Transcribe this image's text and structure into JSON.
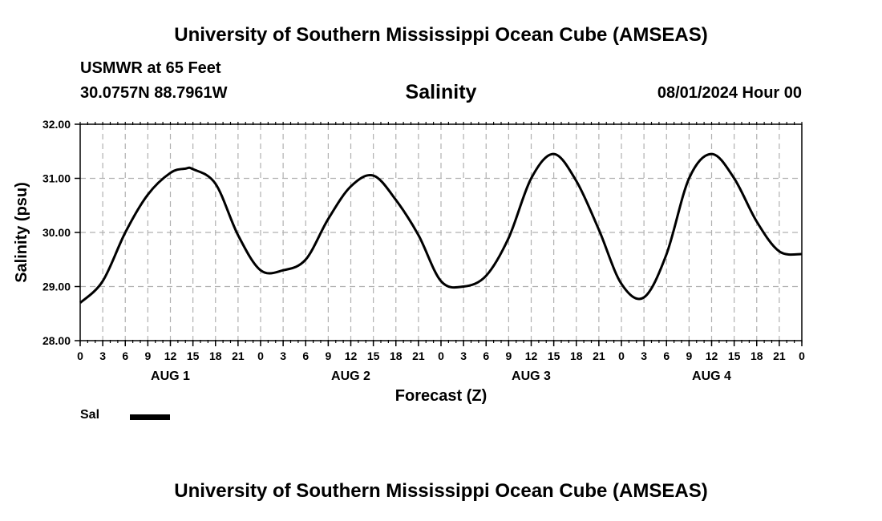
{
  "header": {
    "title": "University of Southern Mississippi Ocean Cube (AMSEAS)",
    "station": "USMWR at 65 Feet",
    "coords": "30.0757N  88.7961W",
    "variable": "Salinity",
    "datetime": "08/01/2024 Hour 00"
  },
  "footer": {
    "title": "University of Southern Mississippi Ocean Cube (AMSEAS)"
  },
  "legend": {
    "label": "Sal"
  },
  "chart_data": {
    "type": "line",
    "title": "Salinity",
    "xlabel": "Forecast (Z)",
    "ylabel": "Salinity (psu)",
    "xlim": [
      0,
      96
    ],
    "ylim": [
      28.0,
      32.0
    ],
    "yticks": [
      "28.00",
      "29.00",
      "30.00",
      "31.00",
      "32.00"
    ],
    "xtick_step_hours": 3,
    "xtick_labels": [
      "0",
      "3",
      "6",
      "9",
      "12",
      "15",
      "18",
      "21",
      "0",
      "3",
      "6",
      "9",
      "12",
      "15",
      "18",
      "21",
      "0",
      "3",
      "6",
      "9",
      "12",
      "15",
      "18",
      "21",
      "0",
      "3",
      "6",
      "9",
      "12",
      "15",
      "18",
      "21",
      "0"
    ],
    "day_labels": [
      {
        "label": "AUG 1",
        "hour": 12
      },
      {
        "label": "AUG 2",
        "hour": 36
      },
      {
        "label": "AUG 3",
        "hour": 60
      },
      {
        "label": "AUG 4",
        "hour": 84
      }
    ],
    "grid": true,
    "series": [
      {
        "name": "Sal",
        "x": [
          0,
          3,
          6,
          9,
          12,
          14,
          15,
          18,
          21,
          24,
          27,
          30,
          33,
          36,
          39,
          42,
          45,
          48,
          51,
          54,
          57,
          60,
          63,
          66,
          69,
          72,
          75,
          78,
          81,
          84,
          87,
          90,
          93,
          96
        ],
        "values": [
          28.7,
          29.1,
          30.0,
          30.7,
          31.1,
          31.18,
          31.17,
          30.9,
          29.95,
          29.3,
          29.3,
          29.5,
          30.25,
          30.85,
          31.05,
          30.6,
          29.95,
          29.1,
          29.0,
          29.2,
          29.9,
          31.0,
          31.45,
          30.95,
          30.05,
          29.05,
          28.8,
          29.6,
          31.0,
          31.45,
          31.0,
          30.2,
          29.65,
          29.6
        ]
      }
    ]
  }
}
